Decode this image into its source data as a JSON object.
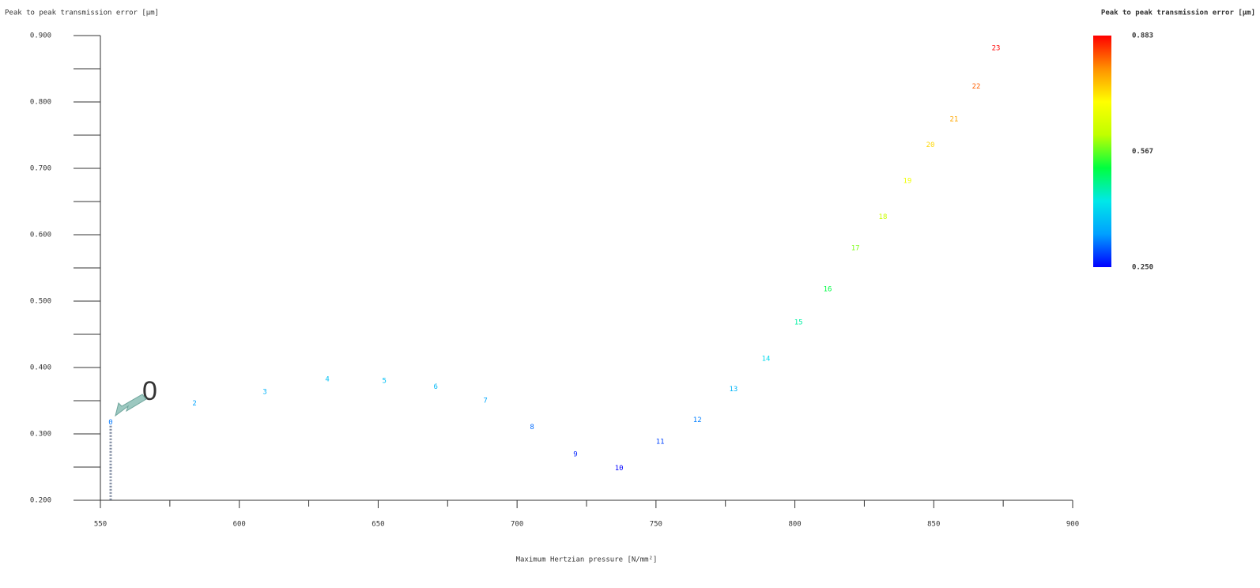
{
  "chart_data": {
    "type": "scatter",
    "y_label": "Peak to peak transmission error [μm]",
    "x_label": "Maximum Hertzian pressure [N/mm²]",
    "colorbar_title": "Peak to peak transmission error [μm]",
    "labels": [
      "0",
      "2",
      "3",
      "4",
      "5",
      "6",
      "7",
      "8",
      "9",
      "10",
      "11",
      "12",
      "13",
      "14",
      "15",
      "16",
      "17",
      "18",
      "19",
      "20",
      "21",
      "22",
      "23"
    ],
    "x": [
      553.7,
      583.9,
      609.2,
      631.7,
      652.2,
      670.7,
      688.6,
      705.4,
      721.0,
      736.7,
      751.5,
      764.9,
      777.9,
      789.6,
      801.3,
      811.8,
      821.8,
      831.7,
      840.5,
      848.8,
      857.3,
      865.3,
      872.4
    ],
    "y": [
      0.317,
      0.346,
      0.363,
      0.382,
      0.38,
      0.371,
      0.35,
      0.31,
      0.269,
      0.248,
      0.288,
      0.321,
      0.367,
      0.413,
      0.468,
      0.518,
      0.58,
      0.627,
      0.681,
      0.735,
      0.774,
      0.823,
      0.881
    ],
    "xlim": [
      550,
      900
    ],
    "xticks": [
      550,
      600,
      650,
      700,
      750,
      800,
      850,
      900
    ],
    "xminor_ticks": [
      575,
      625,
      675,
      725,
      775,
      825,
      875
    ],
    "ylim": [
      0.2,
      0.9
    ],
    "yticks": [
      {
        "value": 0.2,
        "label": "0.200"
      },
      {
        "value": 0.3,
        "label": "0.300"
      },
      {
        "value": 0.4,
        "label": "0.400"
      },
      {
        "value": 0.5,
        "label": "0.500"
      },
      {
        "value": 0.6,
        "label": "0.600"
      },
      {
        "value": 0.7,
        "label": "0.700"
      },
      {
        "value": 0.8,
        "label": "0.800"
      },
      {
        "value": 0.9,
        "label": "0.900"
      }
    ],
    "yminor_ticks": [
      0.25,
      0.35,
      0.45,
      0.55,
      0.65,
      0.75,
      0.85
    ],
    "colorbar_lim": [
      0.25,
      0.883
    ],
    "colorbar_ticks": [
      {
        "value": 0.883,
        "label": "0.883"
      },
      {
        "value": 0.567,
        "label": "0.567"
      },
      {
        "value": 0.25,
        "label": "0.250"
      }
    ],
    "colormap": [
      "#0000ff",
      "#00a0ff",
      "#00e8e8",
      "#00ff40",
      "#c0ff00",
      "#ffff00",
      "#ff9000",
      "#ff0000"
    ],
    "annotation": "0"
  }
}
